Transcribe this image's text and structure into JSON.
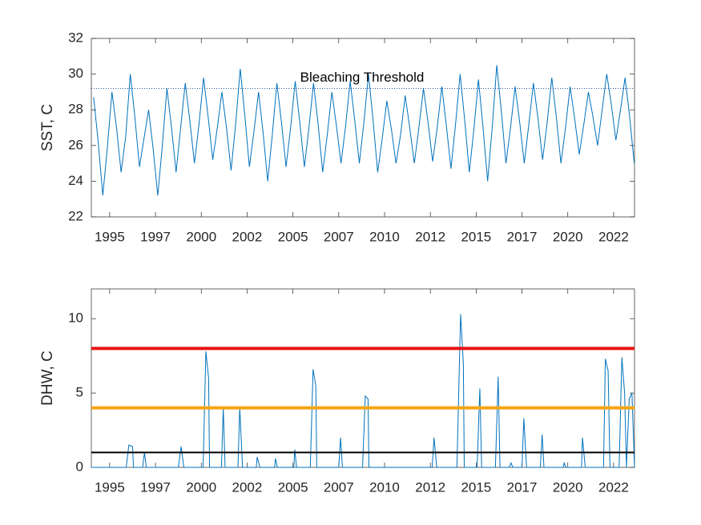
{
  "chart_data": [
    {
      "type": "line",
      "ylabel": "SST, C",
      "color": "#0072bd",
      "xlim": [
        1994.0,
        2023.64
      ],
      "ylim": [
        22,
        32
      ],
      "yticks": [
        22,
        24,
        26,
        28,
        30,
        32
      ],
      "xticks": [
        {
          "value": 1995.0,
          "label": "1995"
        },
        {
          "value": 1997.5,
          "label": "1997"
        },
        {
          "value": 2000.0,
          "label": "2000"
        },
        {
          "value": 2002.5,
          "label": "2002"
        },
        {
          "value": 2005.0,
          "label": "2005"
        },
        {
          "value": 2007.5,
          "label": "2007"
        },
        {
          "value": 2010.0,
          "label": "2010"
        },
        {
          "value": 2012.5,
          "label": "2012"
        },
        {
          "value": 2015.0,
          "label": "2015"
        },
        {
          "value": 2017.5,
          "label": "2017"
        },
        {
          "value": 2020.0,
          "label": "2020"
        },
        {
          "value": 2022.5,
          "label": "2022"
        }
      ],
      "threshold": 29.2,
      "threshold_label": "Bleaching Threshold",
      "x": [
        1994.125,
        1994.375,
        1994.625,
        1994.875,
        1995.125,
        1995.375,
        1995.625,
        1995.875,
        1996.125,
        1996.375,
        1996.625,
        1996.875,
        1997.125,
        1997.375,
        1997.625,
        1997.875,
        1998.125,
        1998.375,
        1998.625,
        1998.875,
        1999.125,
        1999.375,
        1999.625,
        1999.875,
        2000.125,
        2000.375,
        2000.625,
        2000.875,
        2001.125,
        2001.375,
        2001.625,
        2001.875,
        2002.125,
        2002.375,
        2002.625,
        2002.875,
        2003.125,
        2003.375,
        2003.625,
        2003.875,
        2004.125,
        2004.375,
        2004.625,
        2004.875,
        2005.125,
        2005.375,
        2005.625,
        2005.875,
        2006.125,
        2006.375,
        2006.625,
        2006.875,
        2007.125,
        2007.375,
        2007.625,
        2007.875,
        2008.125,
        2008.375,
        2008.625,
        2008.875,
        2009.125,
        2009.375,
        2009.625,
        2009.875,
        2010.125,
        2010.375,
        2010.625,
        2010.875,
        2011.125,
        2011.375,
        2011.625,
        2011.875,
        2012.125,
        2012.375,
        2012.625,
        2012.875,
        2013.125,
        2013.375,
        2013.625,
        2013.875,
        2014.125,
        2014.375,
        2014.625,
        2014.875,
        2015.125,
        2015.375,
        2015.625,
        2015.875,
        2016.125,
        2016.375,
        2016.625,
        2016.875,
        2017.125,
        2017.375,
        2017.625,
        2017.875,
        2018.125,
        2018.375,
        2018.625,
        2018.875,
        2019.125,
        2019.375,
        2019.625,
        2019.875,
        2020.125,
        2020.375,
        2020.625,
        2020.875,
        2021.125,
        2021.375,
        2021.625,
        2021.875,
        2022.125,
        2022.375,
        2022.625,
        2022.875,
        2023.125,
        2023.375,
        2023.625
      ],
      "values": [
        28.7,
        26.2,
        23.2,
        25.9,
        29.0,
        27.0,
        24.5,
        26.5,
        30.0,
        27.6,
        24.8,
        26.4,
        28.0,
        25.8,
        23.2,
        26.0,
        29.2,
        27.0,
        24.5,
        27.0,
        29.5,
        27.4,
        25.0,
        27.2,
        29.8,
        27.6,
        25.2,
        27.0,
        29.0,
        27.0,
        24.6,
        27.2,
        30.3,
        27.7,
        24.8,
        26.8,
        29.0,
        26.7,
        24.0,
        26.6,
        29.5,
        27.3,
        24.8,
        27.0,
        29.6,
        27.3,
        24.8,
        27.0,
        29.5,
        27.2,
        24.5,
        26.6,
        29.0,
        27.1,
        25.0,
        27.1,
        29.6,
        27.4,
        25.0,
        27.3,
        30.0,
        27.4,
        24.5,
        26.4,
        28.5,
        26.9,
        25.0,
        26.6,
        28.8,
        27.0,
        25.0,
        27.0,
        29.2,
        27.3,
        25.1,
        27.0,
        29.3,
        27.1,
        24.7,
        27.2,
        30.0,
        27.4,
        24.5,
        26.9,
        29.7,
        27.0,
        24.0,
        27.0,
        30.5,
        27.9,
        25.0,
        27.0,
        29.3,
        27.3,
        25.0,
        27.2,
        29.5,
        27.5,
        25.2,
        27.3,
        29.8,
        27.6,
        25.0,
        27.0,
        29.3,
        27.5,
        25.5,
        27.2,
        29.0,
        27.6,
        26.0,
        28.0,
        30.0,
        28.3,
        26.3,
        28.0,
        29.8,
        27.6,
        25.0
      ]
    },
    {
      "type": "line",
      "ylabel": "DHW, C",
      "color": "#0072bd",
      "xlim": [
        1994.0,
        2023.64
      ],
      "ylim": [
        0,
        12
      ],
      "yticks": [
        0,
        5,
        10
      ],
      "xticks": [
        {
          "value": 1995.0,
          "label": "1995"
        },
        {
          "value": 1997.5,
          "label": "1997"
        },
        {
          "value": 2000.0,
          "label": "2000"
        },
        {
          "value": 2002.5,
          "label": "2002"
        },
        {
          "value": 2005.0,
          "label": "2005"
        },
        {
          "value": 2007.5,
          "label": "2007"
        },
        {
          "value": 2010.0,
          "label": "2010"
        },
        {
          "value": 2012.5,
          "label": "2012"
        },
        {
          "value": 2015.0,
          "label": "2015"
        },
        {
          "value": 2017.5,
          "label": "2017"
        },
        {
          "value": 2020.0,
          "label": "2020"
        },
        {
          "value": 2022.5,
          "label": "2022"
        }
      ],
      "alert_levels": [
        {
          "value": 8,
          "color": "#e81313"
        },
        {
          "value": 4,
          "color": "#f5a412"
        },
        {
          "value": 1,
          "color": "#000000"
        }
      ],
      "x": [
        1994.0,
        1995.9,
        1996.05,
        1996.25,
        1996.3,
        1996.8,
        1996.9,
        1997.0,
        1998.75,
        1998.9,
        1999.05,
        2000.1,
        2000.25,
        2000.4,
        2000.45,
        2001.1,
        2001.2,
        2001.3,
        2002.0,
        2002.1,
        2002.25,
        2003.0,
        2003.05,
        2003.2,
        2004.0,
        2004.05,
        2004.15,
        2005.05,
        2005.1,
        2005.2,
        2005.95,
        2006.1,
        2006.25,
        2006.3,
        2007.5,
        2007.6,
        2007.7,
        2008.8,
        2008.95,
        2009.1,
        2009.15,
        2012.6,
        2012.7,
        2012.85,
        2013.95,
        2014.15,
        2014.3,
        2014.35,
        2015.05,
        2015.2,
        2015.3,
        2016.05,
        2016.2,
        2016.3,
        2016.8,
        2016.9,
        2017.0,
        2017.5,
        2017.6,
        2017.75,
        2018.5,
        2018.6,
        2018.7,
        2019.75,
        2019.8,
        2019.9,
        2020.75,
        2020.8,
        2020.95,
        2021.95,
        2022.05,
        2022.2,
        2022.3,
        2022.8,
        2022.95,
        2023.1,
        2023.2,
        2023.35,
        2023.5,
        2023.64
      ],
      "values": [
        0,
        0,
        1.5,
        1.4,
        0,
        0,
        1.0,
        0,
        0,
        1.4,
        0,
        0,
        7.8,
        6.0,
        0,
        0,
        4.0,
        0,
        0,
        4.0,
        0,
        0,
        0.7,
        0,
        0,
        0.6,
        0,
        0,
        1.2,
        0,
        0,
        6.6,
        5.5,
        0,
        0,
        2.0,
        0,
        0,
        4.8,
        4.6,
        0,
        0,
        2.0,
        0,
        0,
        10.3,
        7.0,
        0,
        0,
        5.3,
        0,
        0,
        6.1,
        0,
        0,
        0.3,
        0,
        0,
        3.3,
        0,
        0,
        2.2,
        0,
        0,
        0.3,
        0,
        0,
        2.0,
        0,
        0,
        7.3,
        6.5,
        0,
        0,
        7.4,
        5.0,
        0,
        4.6,
        5.0,
        0
      ]
    }
  ]
}
